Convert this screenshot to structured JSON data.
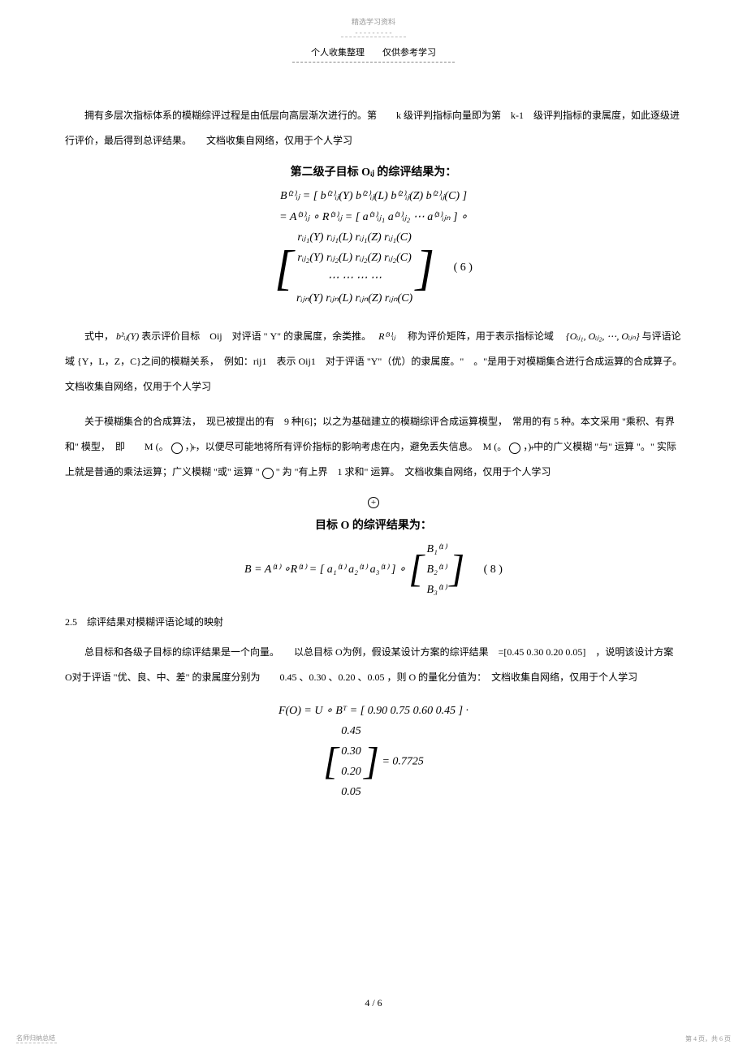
{
  "top": {
    "header": "精选学习资料",
    "subheader": "- - - - - - - - -"
  },
  "pageLabel": "个人收集整理　　仅供参考学习",
  "para1": "拥有多层次指标体系的模糊综评过程是由低层向高层渐次进行的。第　　k 级评判指标向量即为第　k-1　级评判指标的隶属度，如此逐级进行评价，最后得到总评结果。　　文档收集自网络，仅用于个人学习",
  "sectionTitle1": "第二级子目标 Oᵢⱼ 的综评结果为：",
  "eq6": {
    "line1": "B⁽²⁾ᵢⱼ = [ b⁽²⁾ᵢⱼ(Y)  b⁽²⁾ᵢⱼ(L)  b⁽²⁾ᵢⱼ(Z)  b⁽²⁾ᵢⱼ(C) ]",
    "line2": "= A⁽³⁾ᵢⱼ ∘ R⁽³⁾ᵢⱼ = [ a⁽³⁾ᵢⱼ₁  a⁽³⁾ᵢⱼ₂  ⋯  a⁽³⁾ᵢⱼₙ ] ∘",
    "m": {
      "r1": "rᵢⱼ₁(Y)  rᵢⱼ₁(L)  rᵢⱼ₁(Z)  rᵢⱼ₁(C)",
      "r2": "rᵢⱼ₂(Y)  rᵢⱼ₂(L)  rᵢⱼ₂(Z)  rᵢⱼ₂(C)",
      "r3": "⋯      ⋯      ⋯      ⋯",
      "r4": "rᵢⱼₙ(Y)  rᵢⱼₙ(L)  rᵢⱼₙ(Z)  rᵢⱼₙ(C)"
    },
    "num": "( 6 )"
  },
  "para2_a": "式中，",
  "para2_expr1": "b²ᵢⱼ(Y)",
  "para2_b": "表示评价目标　Oij　对评语 \" Y\" 的隶属度，余类推。　",
  "para2_expr2": "R⁽³⁾ᵢⱼ",
  "para2_c": "　称为评价矩阵，用于表示指标论域　",
  "para2_expr3": "{Oᵢⱼ₁, Oᵢⱼ₂, ⋯, Oᵢⱼₙ}",
  "para2_d": "与评语论域 {Y，L，Z，C}之间的模糊关系，　例如：rij1　表示 Oij1　对于评语 \"Y\"（优）的隶属度。\"　。\"是用于对模糊集合进行合成运算的合成算子。　　文档收集自网络，仅用于个人学习",
  "para3_a": "关于模糊集合的合成算法，　现已被提出的有　9 种[6]；以之为基础建立的模糊综评合成运算模型，　常用的有 5 种。本文采用 \"乘积、有界和\" 模型，　即　　M (。 ",
  "para3_b": "，) ，以便尽可能地将所有评价指标的影响考虑在内，避免丢失信息。　M (。 ",
  "para3_c": "，) 中的广义模糊 \"与\" 运算 \"。\" 实际上就是普通的乘法运算；广义模糊 \"或\" 运算 \" ",
  "para3_d": "\" 为 \"有上界　1 求和\" 运算。　文档收集自网络，仅用于个人学习",
  "sectionTitle2": "目标 O 的综评结果为：",
  "eq8": {
    "lhs": "B = A⁽¹⁾ ∘R⁽¹⁾ = [ a₁⁽¹⁾  a₂⁽¹⁾  a₃⁽¹⁾ ] ∘",
    "m": {
      "r1": "B₁⁽¹⁾",
      "r2": "B₂⁽¹⁾",
      "r3": "B₃⁽¹⁾"
    },
    "num": "( 8 )"
  },
  "sec25": "2.5　综评结果对模糊评语论域的映射",
  "para4": "总目标和各级子目标的综评结果是一个向量。　　以总目标  O为例，假设某设计方案的综评结果　=[0.45  0.30 0.20 0.05]　，说明该设计方案　O对于评语 \"优、良、中、差\" 的隶属度分别为　　0.45 、0.30 、0.20 、0.05 ，则 O 的量化分值为：　文档收集自网络，仅用于个人学习",
  "eq9": {
    "line1": "F(O) = U ∘ Bᵀ = [ 0.90  0.75  0.60  0.45 ] ·",
    "m": {
      "r1": "0.45",
      "r2": "0.30",
      "r3": "0.20",
      "r4": "0.05"
    },
    "res": "= 0.7725"
  },
  "pageNo": "4 / 6",
  "footerLeft": "名师归纳总结",
  "footerRight": "第 4 页，共 6 页"
}
